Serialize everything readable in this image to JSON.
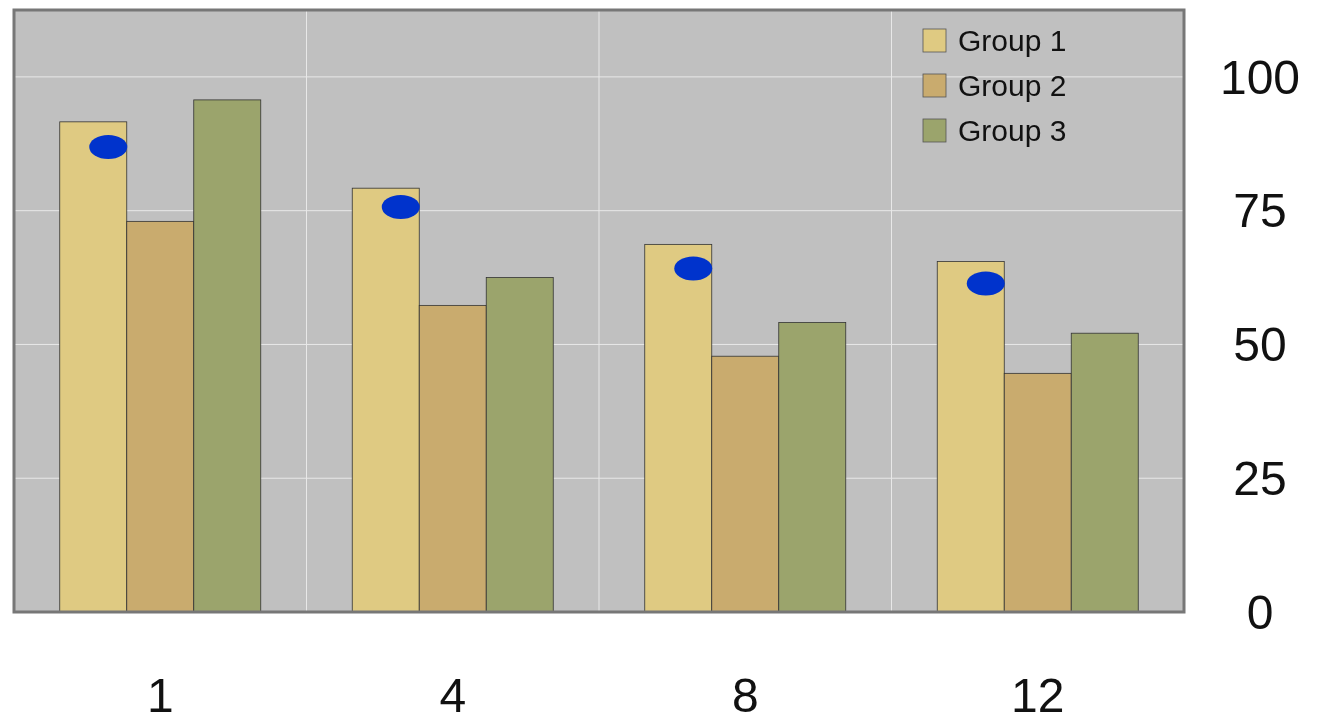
{
  "chart_data": {
    "type": "bar",
    "categories": [
      "1",
      "4",
      "8",
      "12"
    ],
    "series": [
      {
        "name": "Group 1",
        "color": "#dfca82",
        "values": [
          91.6,
          79.2,
          68.7,
          65.5
        ]
      },
      {
        "name": "Group 2",
        "color": "#c9ab6e",
        "values": [
          73,
          57.3,
          47.8,
          44.6
        ]
      },
      {
        "name": "Group 3",
        "color": "#9ba46c",
        "values": [
          95.7,
          62.5,
          54.1,
          52.1
        ]
      },
      {
        "type": "scatter",
        "color": "#0033cc",
        "x": [
          "1",
          "4",
          "8",
          "12"
        ],
        "values": [
          86.9,
          75.7,
          64.2,
          61.4
        ]
      }
    ],
    "ylim": [
      0,
      112.5
    ],
    "yticks": [
      0,
      25,
      50,
      75,
      100
    ],
    "grid": true,
    "legend": "top right",
    "marker": "circle"
  }
}
